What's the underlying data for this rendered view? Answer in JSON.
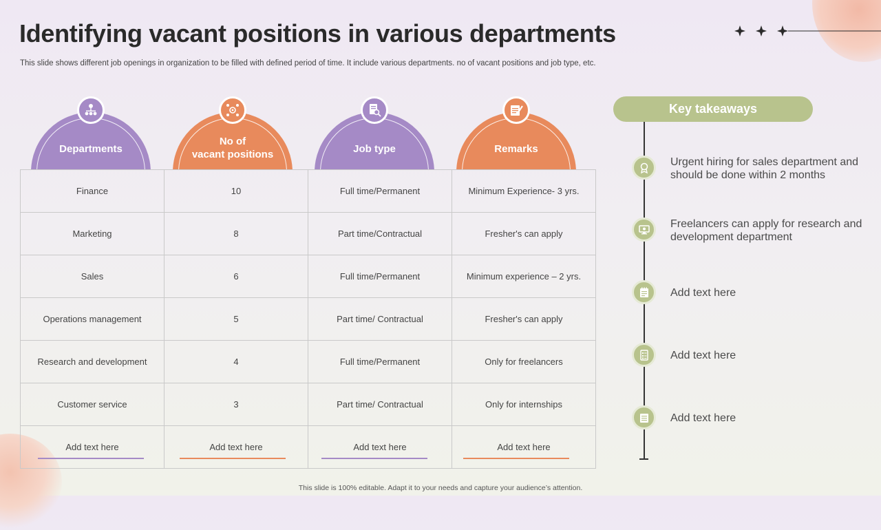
{
  "slide": {
    "title": "Identifying vacant positions in various departments",
    "subtitle": "This slide shows different job openings in organization to be filled with defined period of time. It include various departments. no of vacant positions and job type, etc.",
    "footer": "This slide is 100% editable. Adapt it to your needs and capture your audience’s attention."
  },
  "colors": {
    "purple": "#a58ac6",
    "orange": "#e88a5c",
    "green": "#b8c38d"
  },
  "table": {
    "headers": [
      {
        "label_line1": "Departments",
        "label_line2": "",
        "icon": "org-chart-icon"
      },
      {
        "label_line1": "No of",
        "label_line2": "vacant positions",
        "icon": "team-gear-icon"
      },
      {
        "label_line1": "Job type",
        "label_line2": "",
        "icon": "document-search-icon"
      },
      {
        "label_line1": "Remarks",
        "label_line2": "",
        "icon": "notes-pen-icon"
      }
    ],
    "rows": [
      [
        "Finance",
        "10",
        "Full time/Permanent",
        "Minimum Experience- 3 yrs."
      ],
      [
        "Marketing",
        "8",
        "Part time/Contractual",
        "Fresher's can apply"
      ],
      [
        "Sales",
        "6",
        "Full time/Permanent",
        "Minimum experience – 2 yrs."
      ],
      [
        "Operations management",
        "5",
        "Part time/ Contractual",
        "Fresher's can apply"
      ],
      [
        "Research and development",
        "4",
        "Full time/Permanent",
        "Only for freelancers"
      ],
      [
        "Customer service",
        "3",
        "Part time/ Contractual",
        "Only for internships"
      ],
      [
        "Add text here",
        "Add text here",
        "Add text here",
        "Add text here"
      ]
    ]
  },
  "takeaways": {
    "title": "Key takeaways",
    "items": [
      {
        "text": "Urgent hiring for sales department and should be done within 2 months",
        "icon": "badge-icon"
      },
      {
        "text": "Freelancers can apply for research and development department",
        "icon": "monitor-gear-icon"
      },
      {
        "text": "Add text here",
        "icon": "notepad-icon"
      },
      {
        "text": "Add text here",
        "icon": "checklist-icon"
      },
      {
        "text": "Add text here",
        "icon": "document-icon"
      }
    ]
  }
}
